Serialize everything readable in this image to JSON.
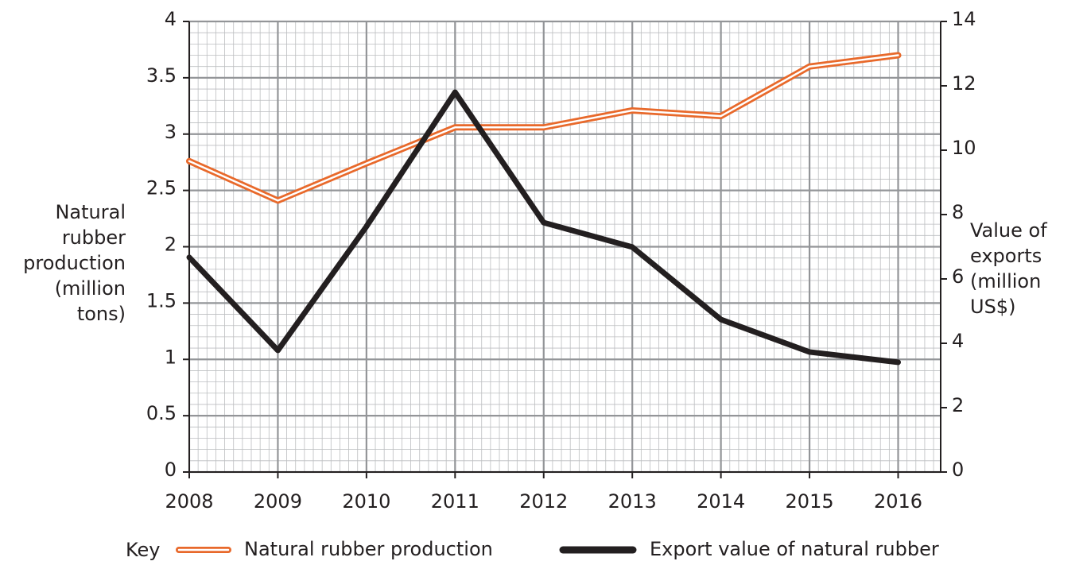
{
  "chart_data": {
    "type": "line",
    "ylabel": [
      "Natural",
      "rubber",
      "production",
      "(million",
      "tons)"
    ],
    "y2label": [
      "Value of",
      "exports",
      "(million",
      "US$)"
    ],
    "x": [
      2008,
      2009,
      2010,
      2011,
      2012,
      2013,
      2014,
      2015,
      2016
    ],
    "xlim": [
      2008,
      2016.48
    ],
    "xticks": [
      2008,
      2009,
      2010,
      2011,
      2012,
      2013,
      2014,
      2015,
      2016
    ],
    "ylim": [
      0,
      4
    ],
    "yticks": [
      0,
      0.5,
      1,
      1.5,
      2,
      2.5,
      3,
      3.5,
      4
    ],
    "y2lim": [
      0,
      14
    ],
    "y2ticks": [
      0,
      2,
      4,
      6,
      8,
      10,
      12,
      14
    ],
    "grid": true,
    "legend_title": "Key",
    "legend": "bottom",
    "series": [
      {
        "name": "Natural rubber production",
        "color": "#e8692b",
        "style": "double",
        "values": [
          2.76,
          2.41,
          2.74,
          3.06,
          3.06,
          3.21,
          3.16,
          3.6,
          3.7
        ]
      },
      {
        "name": "Export value of natural rubber",
        "color": "#231f20",
        "axis": "y2",
        "values": [
          6.67,
          3.78,
          7.63,
          11.8,
          7.75,
          6.99,
          4.74,
          3.73,
          3.41
        ]
      }
    ]
  }
}
